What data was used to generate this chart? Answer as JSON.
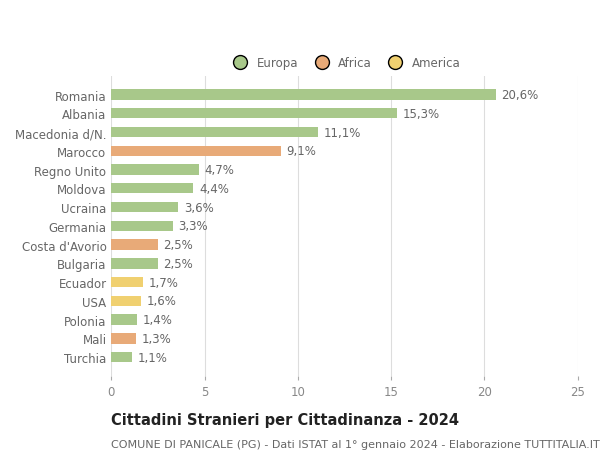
{
  "categories": [
    "Romania",
    "Albania",
    "Macedonia d/N.",
    "Marocco",
    "Regno Unito",
    "Moldova",
    "Ucraina",
    "Germania",
    "Costa d'Avorio",
    "Bulgaria",
    "Ecuador",
    "USA",
    "Polonia",
    "Mali",
    "Turchia"
  ],
  "values": [
    20.6,
    15.3,
    11.1,
    9.1,
    4.7,
    4.4,
    3.6,
    3.3,
    2.5,
    2.5,
    1.7,
    1.6,
    1.4,
    1.3,
    1.1
  ],
  "labels": [
    "20,6%",
    "15,3%",
    "11,1%",
    "9,1%",
    "4,7%",
    "4,4%",
    "3,6%",
    "3,3%",
    "2,5%",
    "2,5%",
    "1,7%",
    "1,6%",
    "1,4%",
    "1,3%",
    "1,1%"
  ],
  "colors": [
    "#a8c88a",
    "#a8c88a",
    "#a8c88a",
    "#e8aa78",
    "#a8c88a",
    "#a8c88a",
    "#a8c88a",
    "#a8c88a",
    "#e8aa78",
    "#a8c88a",
    "#f0d070",
    "#f0d070",
    "#a8c88a",
    "#e8aa78",
    "#a8c88a"
  ],
  "legend_labels": [
    "Europa",
    "Africa",
    "America"
  ],
  "legend_colors": [
    "#a8c88a",
    "#e8aa78",
    "#f0d070"
  ],
  "title": "Cittadini Stranieri per Cittadinanza - 2024",
  "subtitle": "COMUNE DI PANICALE (PG) - Dati ISTAT al 1° gennaio 2024 - Elaborazione TUTTITALIA.IT",
  "xlim": [
    0,
    25
  ],
  "xticks": [
    0,
    5,
    10,
    15,
    20,
    25
  ],
  "background_color": "#ffffff",
  "grid_color": "#dddddd",
  "bar_height": 0.55,
  "label_fontsize": 8.5,
  "tick_fontsize": 8.5,
  "title_fontsize": 10.5,
  "subtitle_fontsize": 8
}
